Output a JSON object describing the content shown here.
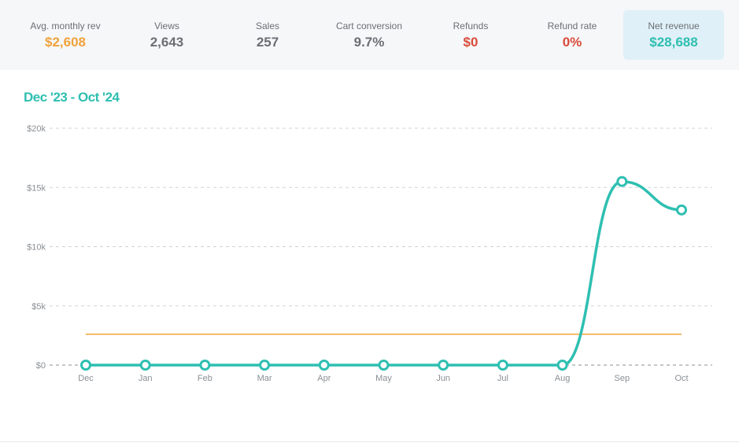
{
  "colors": {
    "accent": "#2ebfb1",
    "orange": "#f0a23a",
    "red": "#d94b3a",
    "gray_value": "#6b6f73",
    "grid": "#cfd3d6"
  },
  "stats": [
    {
      "label": "Avg. monthly rev",
      "value": "$2,608",
      "color": "#f0a23a"
    },
    {
      "label": "Views",
      "value": "2,643",
      "color": "#6b6f73"
    },
    {
      "label": "Sales",
      "value": "257",
      "color": "#6b6f73"
    },
    {
      "label": "Cart conversion",
      "value": "9.7%",
      "color": "#6b6f73"
    },
    {
      "label": "Refunds",
      "value": "$0",
      "color": "#d94b3a"
    },
    {
      "label": "Refund rate",
      "value": "0%",
      "color": "#d94b3a"
    },
    {
      "label": "Net revenue",
      "value": "$28,688",
      "color": "#2ebfb1"
    }
  ],
  "chart_data": {
    "type": "line",
    "title": "Dec '23 - Oct '24",
    "categories": [
      "Dec",
      "Jan",
      "Feb",
      "Mar",
      "Apr",
      "May",
      "Jun",
      "Jul",
      "Aug",
      "Sep",
      "Oct"
    ],
    "series": [
      {
        "values": [
          0,
          0,
          0,
          0,
          0,
          0,
          0,
          0,
          0,
          15500,
          13100
        ],
        "color": "#2ebfb1"
      }
    ],
    "reference_line": {
      "value": 2608,
      "color": "#f0a23a"
    },
    "y_ticks": [
      0,
      5000,
      10000,
      15000,
      20000
    ],
    "y_tick_labels": [
      "$0",
      "$5k",
      "$10k",
      "$15k",
      "$20k"
    ],
    "ylim": [
      0,
      20000
    ],
    "grid": true,
    "xlabel": "",
    "ylabel": ""
  }
}
